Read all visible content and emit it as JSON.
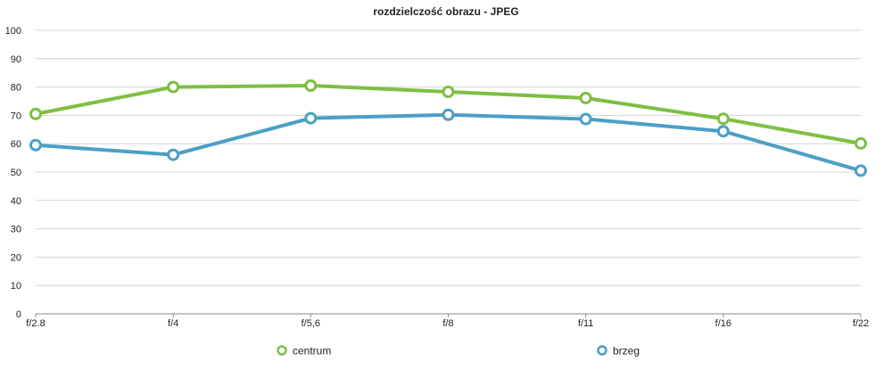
{
  "chart_data": {
    "type": "line",
    "title": "rozdzielczość obrazu - JPEG",
    "xlabel": "",
    "ylabel": "",
    "categories": [
      "f/2.8",
      "f/4",
      "f/5,6",
      "f/8",
      "f/11",
      "f/16",
      "f/22"
    ],
    "ylim": [
      0,
      100
    ],
    "yticks": [
      0,
      10,
      20,
      30,
      40,
      50,
      60,
      70,
      80,
      90,
      100
    ],
    "grid": true,
    "legend_position": "bottom",
    "series": [
      {
        "name": "centrum",
        "color": "#7dbf43",
        "values": [
          70.5,
          80,
          80.5,
          78.3,
          76.1,
          68.8,
          60.1
        ]
      },
      {
        "name": "brzeg",
        "color": "#4b9fc6",
        "values": [
          59.5,
          56.1,
          69,
          70.2,
          68.7,
          64.4,
          50.5
        ]
      }
    ]
  }
}
